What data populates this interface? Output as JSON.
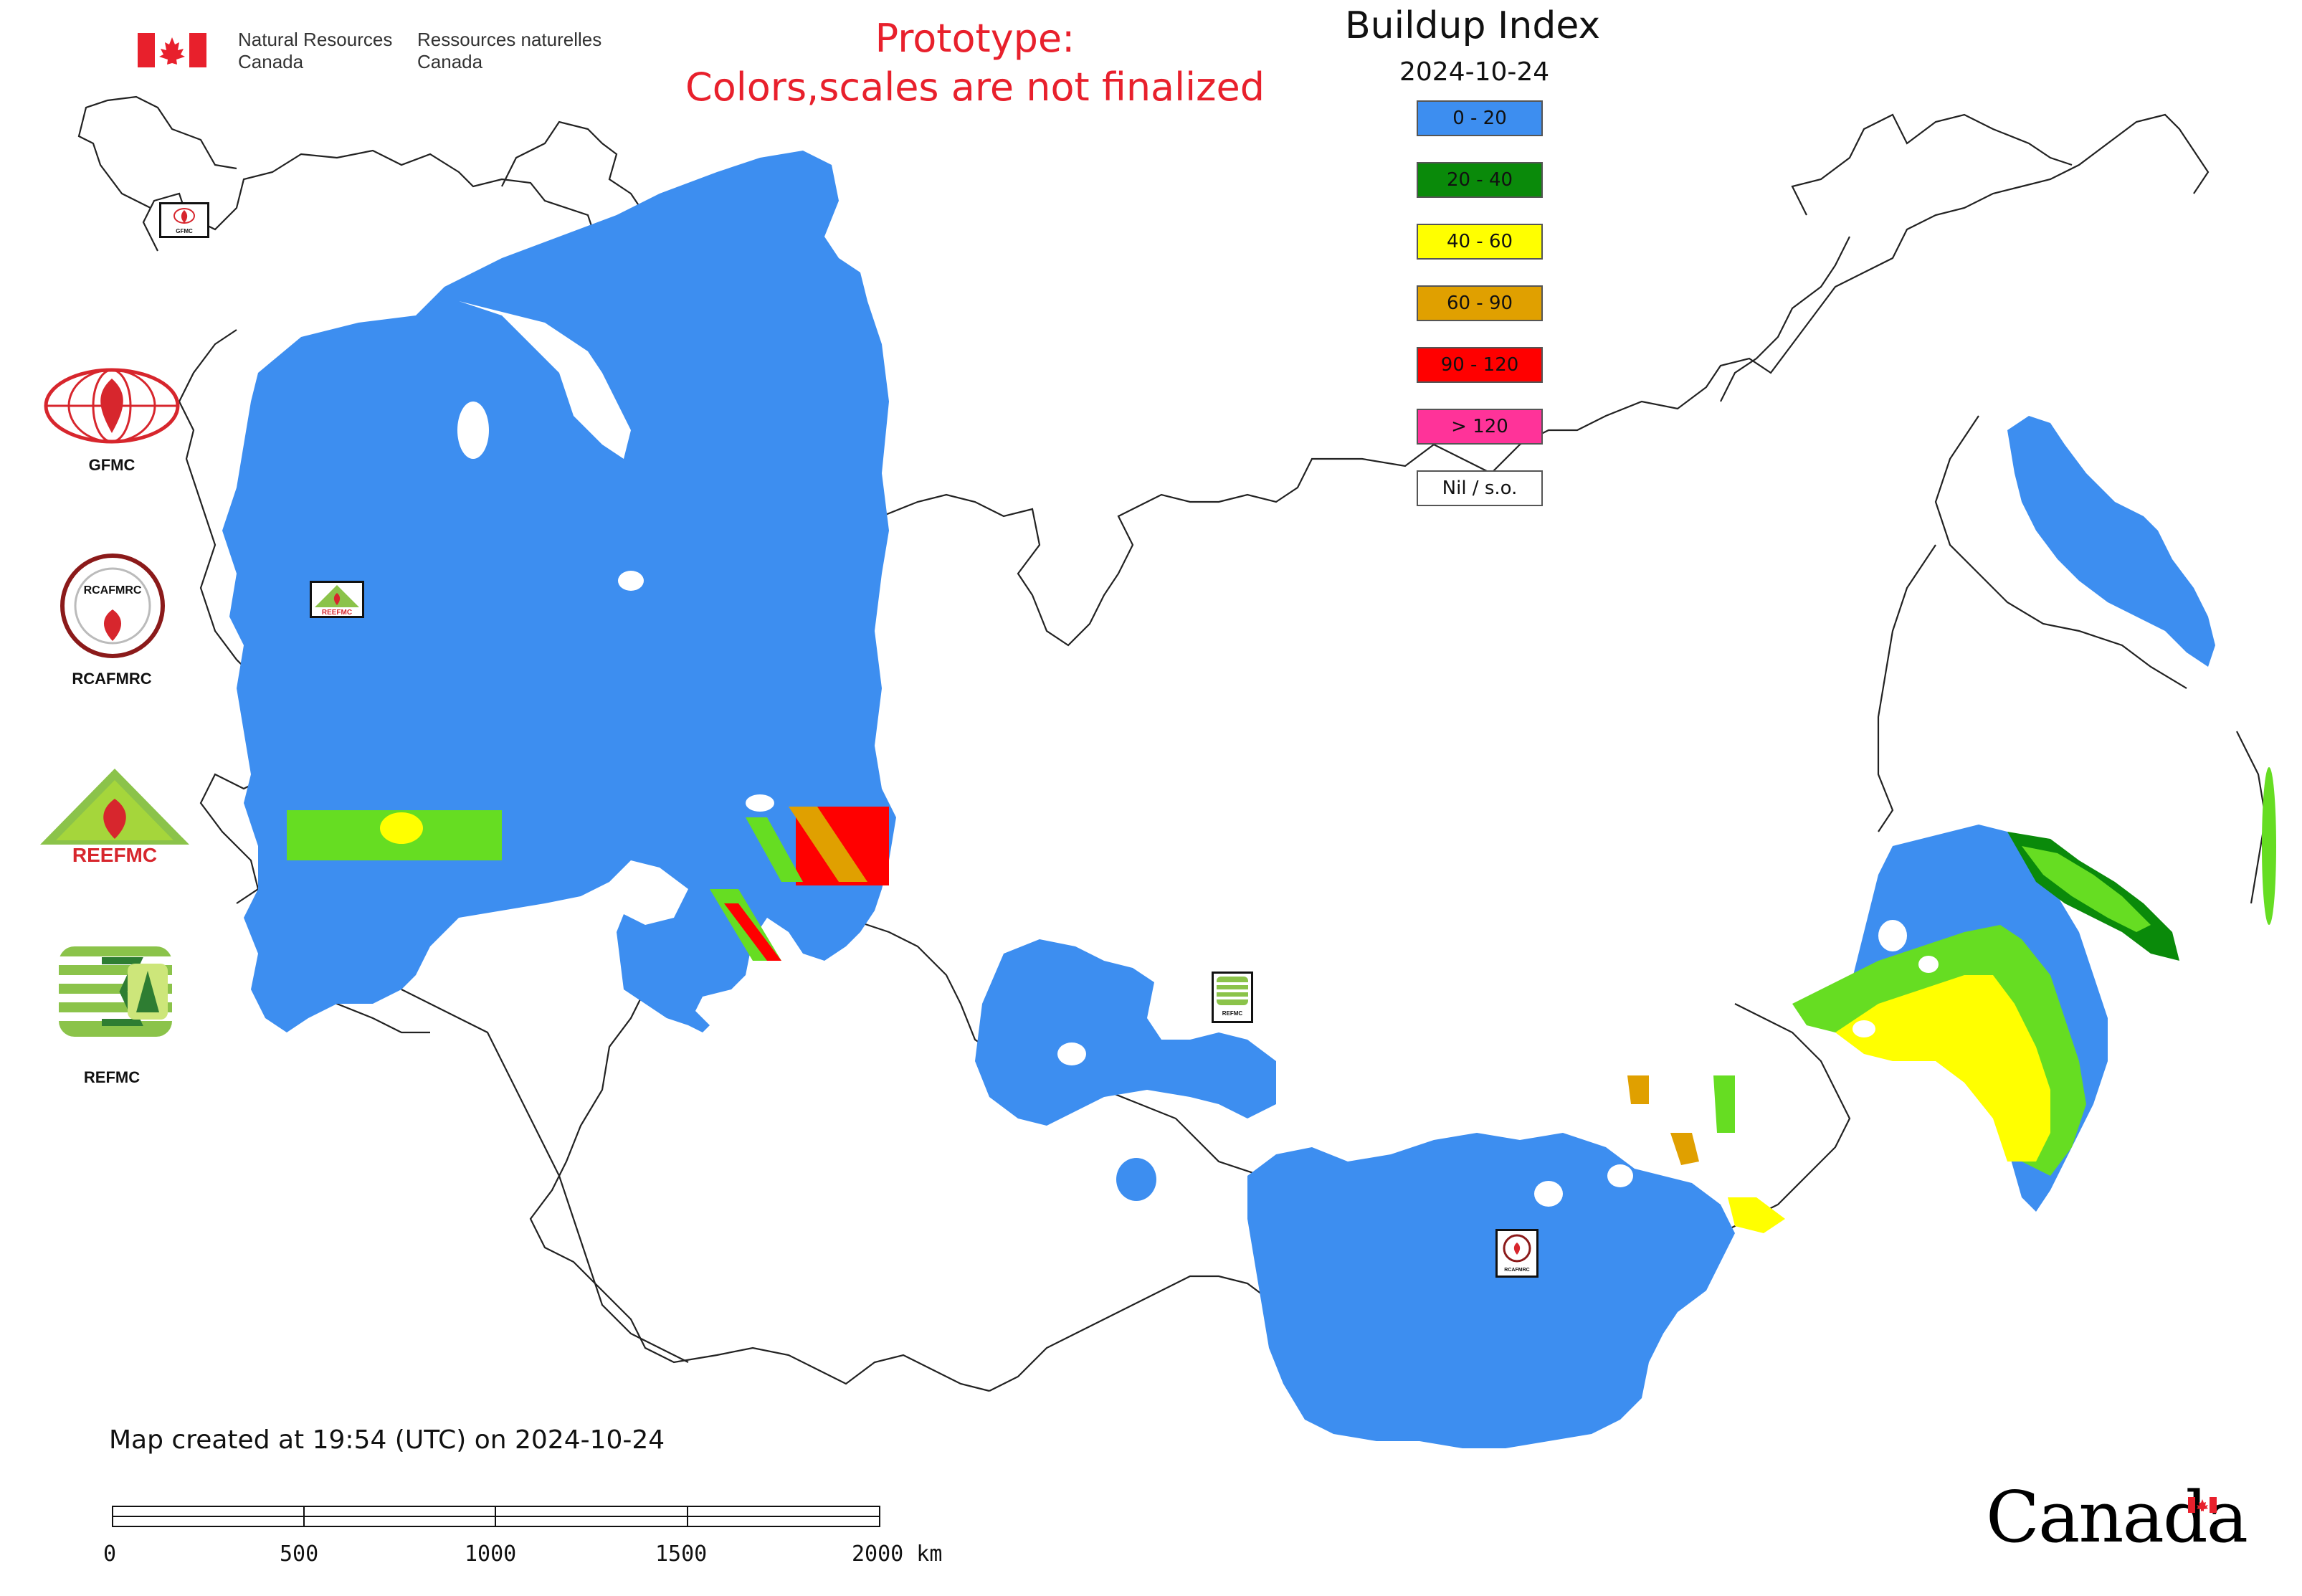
{
  "header": {
    "org_en_line1": "Natural Resources",
    "org_en_line2": "Canada",
    "org_fr_line1": "Ressources naturelles",
    "org_fr_line2": "Canada",
    "prototype_line1": "Prototype:",
    "prototype_line2": "Colors,scales are not finalized"
  },
  "legend": {
    "title": "Buildup Index",
    "date": "2024-10-24",
    "classes": [
      {
        "label": "0 - 20",
        "color": "#3d8ef0"
      },
      {
        "label": "20 - 40",
        "color": "#0a8a0a"
      },
      {
        "label": "40 - 60",
        "color": "#ffff00"
      },
      {
        "label": "60 - 90",
        "color": "#e0a000"
      },
      {
        "label": "90 - 120",
        "color": "#ff0000"
      },
      {
        "label": "> 120",
        "color": "#ff3399"
      },
      {
        "label": "Nil / s.o.",
        "color": "#ffffff"
      }
    ]
  },
  "side_logos": [
    {
      "label": "GFMC",
      "icon": "gfmc-logo-icon"
    },
    {
      "label": "RCAFMRC",
      "icon": "rcafmrc-logo-icon"
    },
    {
      "label": "",
      "icon": "reefmc-logo-icon"
    },
    {
      "label": "REFMC",
      "icon": "refmc-logo-icon"
    }
  ],
  "map_markers": [
    {
      "label": "GFMC",
      "icon": "gfmc-marker-icon"
    },
    {
      "label": "REEFMC",
      "icon": "reefmc-marker-icon"
    },
    {
      "label": "REFMC",
      "icon": "refmc-marker-icon"
    },
    {
      "label": "RCAFMRC",
      "icon": "rcafmrc-marker-icon"
    }
  ],
  "footer": {
    "created_text": "Map created at 19:54 (UTC) on 2024-10-24",
    "scale_labels": [
      "0",
      "500",
      "1000",
      "1500",
      "2000 km"
    ],
    "canada_wordmark": "Canada"
  },
  "colors": {
    "low": "#3d8ef0",
    "green_light": "#66dd22",
    "yellow": "#ffff00",
    "orange": "#e0a000",
    "red": "#ff0000",
    "title_red": "#e8202c",
    "flag_red": "#e8202c"
  }
}
